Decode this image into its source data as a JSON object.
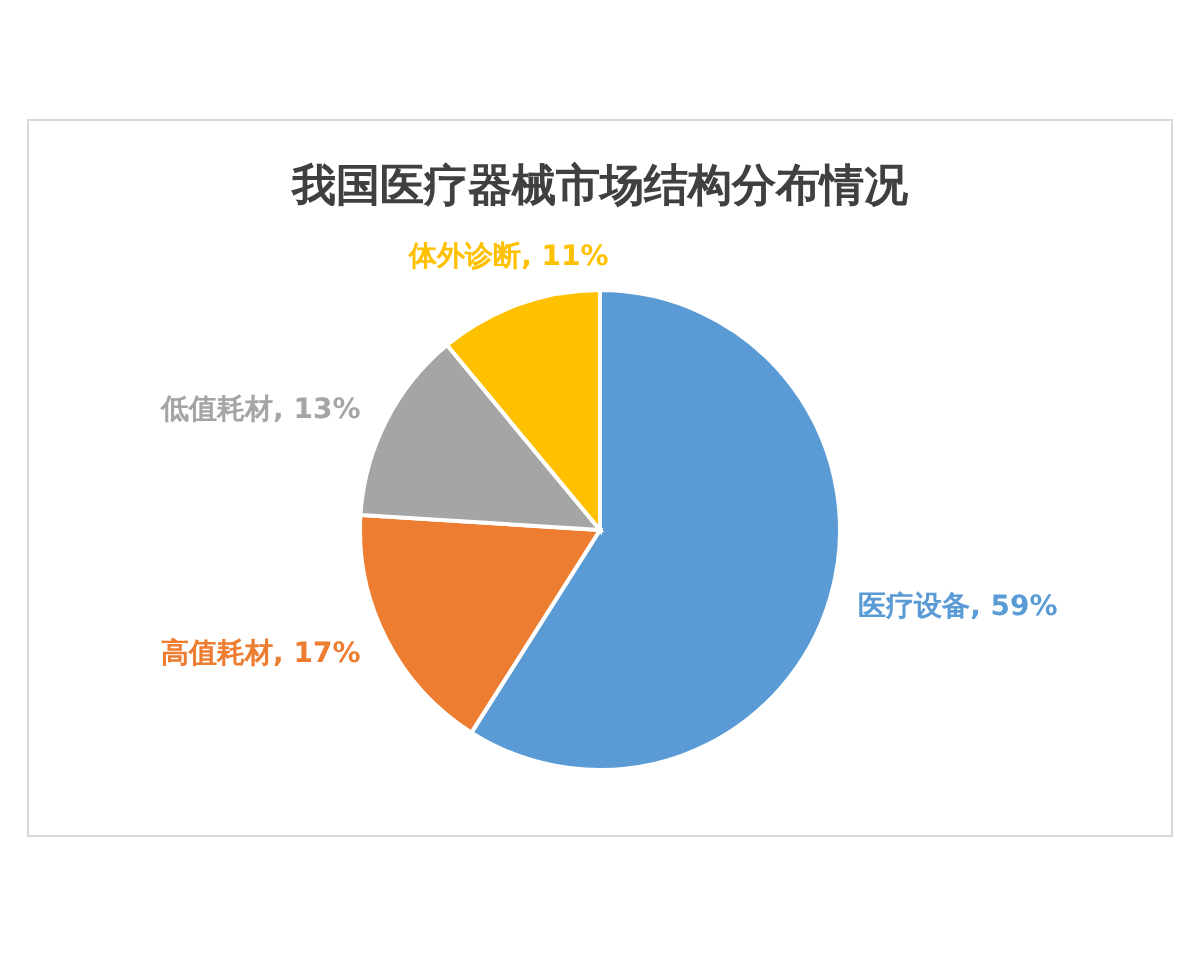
{
  "chart_data": {
    "type": "pie",
    "title": "我国医疗器械市场结构分布情况",
    "categories": [
      "医疗设备",
      "高值耗材",
      "低值耗材",
      "体外诊断"
    ],
    "values": [
      59,
      17,
      13,
      11
    ],
    "value_labels": [
      "59%",
      "17%",
      "13%",
      "11%"
    ],
    "colors": [
      "#5b9bd5",
      "#ed7d31",
      "#a5a5a5",
      "#ffc000"
    ]
  }
}
